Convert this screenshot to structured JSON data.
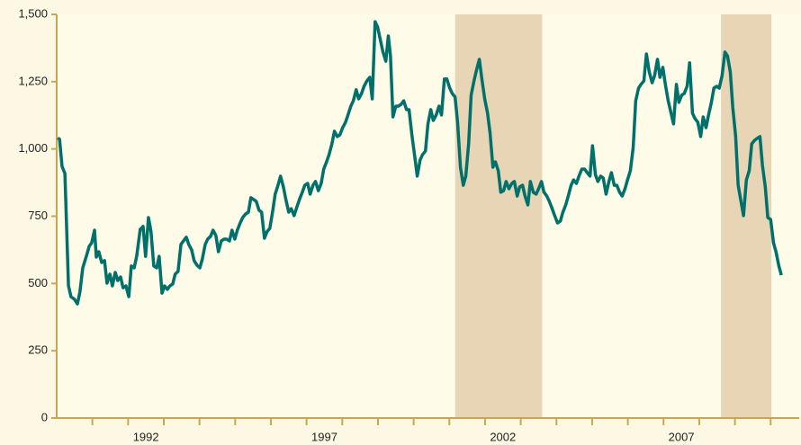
{
  "chart_data": {
    "type": "line",
    "xlim": [
      1990,
      2010.8
    ],
    "ylim": [
      0,
      1500
    ],
    "yticks": [
      0,
      250,
      500,
      750,
      {
        "value": 1000,
        "label": "1,000"
      },
      {
        "value": 1250,
        "label": "1,250"
      },
      {
        "value": 1500,
        "label": "1,500"
      }
    ],
    "xticks": [
      {
        "value": 1992.5,
        "label": "1992"
      },
      {
        "value": 1997.5,
        "label": "1997"
      },
      {
        "value": 2002.5,
        "label": "2002"
      },
      {
        "value": 2007.5,
        "label": "2007"
      }
    ],
    "xminorticks": [
      1991,
      1992,
      1993,
      1994,
      1995,
      1996,
      1997,
      1998,
      1999,
      2000,
      2001,
      2002,
      2003,
      2004,
      2005,
      2006,
      2007,
      2008,
      2009,
      2010
    ],
    "shaded": [
      [
        2001.16,
        2003.6
      ],
      [
        2008.61,
        2010.02
      ]
    ],
    "shade_color": "#e8d5b5",
    "series": [
      {
        "color": "#00706b",
        "x": [
          1990.03,
          1990.08,
          1990.15,
          1990.23,
          1990.33,
          1990.4,
          1990.5,
          1990.58,
          1990.65,
          1990.73,
          1990.83,
          1990.91,
          1990.98,
          1991.06,
          1991.11,
          1991.18,
          1991.26,
          1991.34,
          1991.41,
          1991.49,
          1991.56,
          1991.64,
          1991.71,
          1991.79,
          1991.86,
          1991.94,
          1992.02,
          1992.09,
          1992.17,
          1992.24,
          1992.34,
          1992.42,
          1992.49,
          1992.57,
          1992.64,
          1992.72,
          1992.8,
          1992.87,
          1992.95,
          1993.02,
          1993.1,
          1993.17,
          1993.25,
          1993.32,
          1993.4,
          1993.48,
          1993.55,
          1993.63,
          1993.7,
          1993.78,
          1993.85,
          1993.93,
          1994.01,
          1994.08,
          1994.16,
          1994.23,
          1994.31,
          1994.38,
          1994.46,
          1994.53,
          1994.61,
          1994.69,
          1994.76,
          1994.84,
          1994.91,
          1994.99,
          1995.06,
          1995.14,
          1995.21,
          1995.29,
          1995.37,
          1995.44,
          1995.52,
          1995.59,
          1995.67,
          1995.74,
          1995.82,
          1995.89,
          1995.97,
          1996.05,
          1996.12,
          1996.2,
          1996.27,
          1996.35,
          1996.42,
          1996.5,
          1996.57,
          1996.65,
          1996.73,
          1996.8,
          1996.88,
          1996.95,
          1997.03,
          1997.1,
          1997.18,
          1997.25,
          1997.33,
          1997.41,
          1997.48,
          1997.56,
          1997.63,
          1997.71,
          1997.78,
          1997.86,
          1997.93,
          1998.01,
          1998.09,
          1998.16,
          1998.24,
          1998.31,
          1998.39,
          1998.46,
          1998.54,
          1998.61,
          1998.69,
          1998.77,
          1998.84,
          1998.92,
          1998.99,
          1999.07,
          1999.14,
          1999.22,
          1999.29,
          1999.35,
          1999.42,
          1999.5,
          1999.57,
          1999.65,
          1999.72,
          1999.8,
          1999.87,
          1999.95,
          2000.03,
          2000.1,
          2000.18,
          2000.25,
          2000.33,
          2000.4,
          2000.48,
          2000.55,
          2000.63,
          2000.71,
          2000.78,
          2000.86,
          2000.93,
          2001.01,
          2001.08,
          2001.16,
          2001.23,
          2001.31,
          2001.39,
          2001.46,
          2001.54,
          2001.61,
          2001.69,
          2001.76,
          2001.84,
          2001.91,
          2001.99,
          2002.07,
          2002.14,
          2002.22,
          2002.29,
          2002.37,
          2002.44,
          2002.52,
          2002.59,
          2002.67,
          2002.75,
          2002.82,
          2002.9,
          2002.97,
          2003.05,
          2003.12,
          2003.2,
          2003.27,
          2003.35,
          2003.43,
          2003.5,
          2003.58,
          2003.65,
          2003.73,
          2003.8,
          2003.88,
          2003.95,
          2004.03,
          2004.11,
          2004.18,
          2004.26,
          2004.33,
          2004.41,
          2004.48,
          2004.56,
          2004.63,
          2004.71,
          2004.79,
          2004.86,
          2004.94,
          2005.01,
          2005.09,
          2005.16,
          2005.24,
          2005.31,
          2005.39,
          2005.47,
          2005.54,
          2005.62,
          2005.69,
          2005.77,
          2005.84,
          2005.92,
          2005.99,
          2006.07,
          2006.15,
          2006.22,
          2006.3,
          2006.37,
          2006.45,
          2006.52,
          2006.6,
          2006.68,
          2006.75,
          2006.83,
          2006.9,
          2006.98,
          2007.05,
          2007.13,
          2007.2,
          2007.28,
          2007.36,
          2007.43,
          2007.51,
          2007.58,
          2007.66,
          2007.73,
          2007.81,
          2007.88,
          2007.96,
          2008.04,
          2008.11,
          2008.19,
          2008.26,
          2008.34,
          2008.41,
          2008.49,
          2008.56,
          2008.64,
          2008.72,
          2008.79,
          2008.87,
          2008.94,
          2009.02,
          2009.09,
          2009.17,
          2009.24,
          2009.32,
          2009.4,
          2009.47,
          2009.55,
          2009.62,
          2009.7,
          2009.77,
          2009.85,
          2009.92,
          2010.0,
          2010.08,
          2010.15,
          2010.23,
          2010.3
        ],
        "values": [
          1041,
          1036,
          935,
          909,
          491,
          451,
          441,
          424,
          468,
          558,
          601,
          638,
          651,
          698,
          598,
          618,
          578,
          585,
          501,
          535,
          491,
          541,
          511,
          524,
          484,
          491,
          451,
          565,
          558,
          601,
          701,
          712,
          601,
          745,
          695,
          565,
          558,
          601,
          464,
          491,
          478,
          491,
          498,
          535,
          545,
          645,
          658,
          672,
          645,
          625,
          585,
          568,
          558,
          591,
          645,
          665,
          675,
          698,
          678,
          618,
          658,
          665,
          665,
          658,
          698,
          665,
          698,
          725,
          745,
          758,
          765,
          819,
          812,
          805,
          772,
          765,
          668,
          692,
          705,
          768,
          832,
          865,
          899,
          859,
          812,
          765,
          778,
          752,
          785,
          812,
          839,
          865,
          872,
          832,
          865,
          879,
          845,
          872,
          925,
          952,
          979,
          1019,
          1066,
          1046,
          1052,
          1079,
          1099,
          1126,
          1159,
          1179,
          1220,
          1186,
          1206,
          1233,
          1253,
          1266,
          1186,
          1473,
          1453,
          1403,
          1360,
          1326,
          1420,
          1346,
          1119,
          1159,
          1159,
          1166,
          1179,
          1146,
          1146,
          1052,
          972,
          899,
          959,
          979,
          992,
          1093,
          1146,
          1106,
          1126,
          1159,
          1126,
          1260,
          1260,
          1226,
          1206,
          1193,
          1099,
          932,
          865,
          899,
          1019,
          1200,
          1253,
          1293,
          1333,
          1260,
          1186,
          1133,
          1059,
          932,
          952,
          919,
          839,
          845,
          879,
          852,
          872,
          879,
          825,
          859,
          865,
          825,
          792,
          879,
          839,
          832,
          852,
          879,
          839,
          825,
          805,
          778,
          752,
          725,
          732,
          765,
          792,
          825,
          865,
          885,
          872,
          899,
          925,
          925,
          912,
          899,
          1012,
          905,
          879,
          899,
          892,
          832,
          879,
          912,
          865,
          865,
          839,
          825,
          852,
          885,
          919,
          1006,
          1179,
          1226,
          1240,
          1253,
          1353,
          1286,
          1246,
          1273,
          1333,
          1266,
          1303,
          1240,
          1179,
          1139,
          1093,
          1240,
          1173,
          1200,
          1206,
          1233,
          1320,
          1133,
          1113,
          1099,
          1046,
          1119,
          1079,
          1126,
          1173,
          1226,
          1233,
          1226,
          1273,
          1360,
          1346,
          1286,
          1153,
          1046,
          865,
          805,
          752,
          885,
          919,
          1019,
          1032,
          1039,
          1046,
          939,
          859,
          745,
          738,
          651,
          618,
          565,
          531
        ]
      }
    ]
  }
}
